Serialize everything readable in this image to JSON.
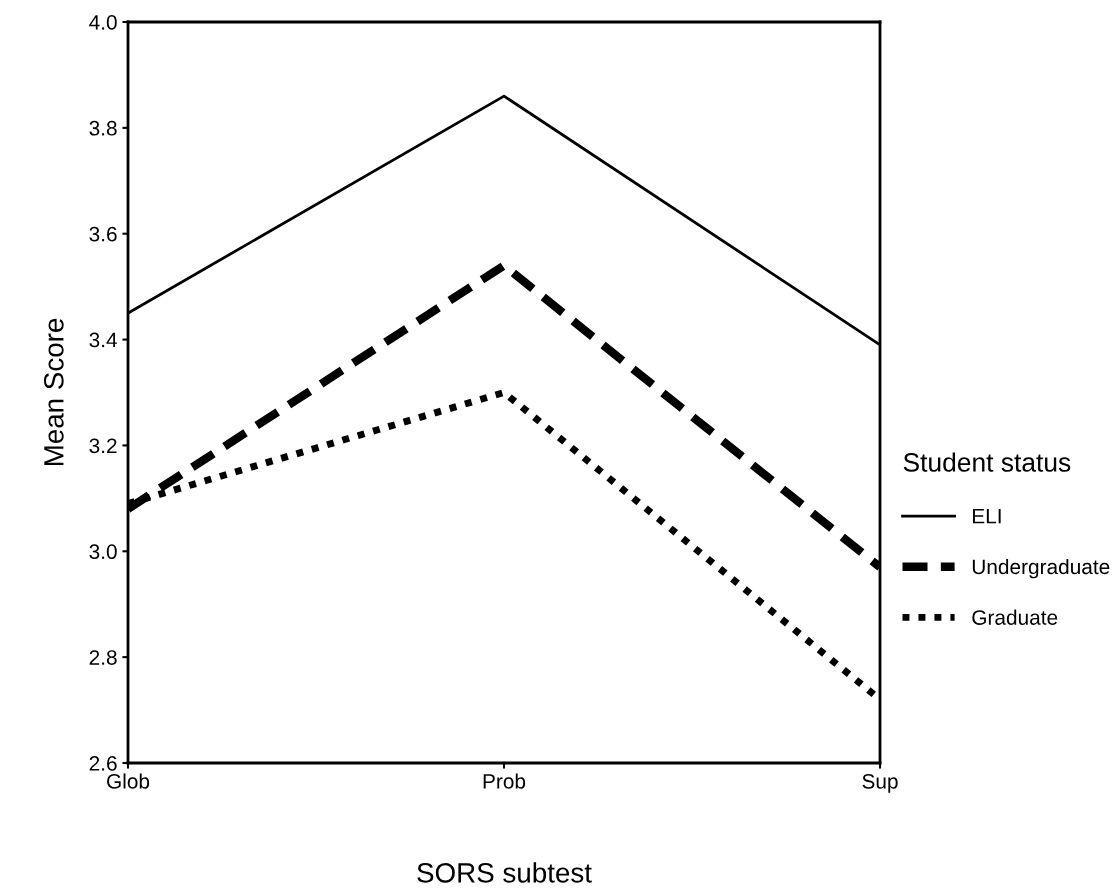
{
  "chart_data": {
    "type": "line",
    "xlabel": "SORS subtest",
    "ylabel": "Mean Score",
    "legend_title": "Student status",
    "categories": [
      "Glob",
      "Prob",
      "Sup"
    ],
    "series": [
      {
        "name": "ELI",
        "color": "#000000",
        "values": [
          3.45,
          3.86,
          3.39
        ],
        "line_style": "solid"
      },
      {
        "name": "Undergraduate",
        "color": "#000000",
        "values": [
          3.08,
          3.54,
          2.97
        ],
        "line_style": "dashed"
      },
      {
        "name": "Graduate",
        "color": "#000000",
        "values": [
          3.09,
          3.3,
          2.72
        ],
        "line_style": "dotted"
      }
    ],
    "ylim": [
      2.6,
      4.0
    ],
    "yticks": [
      {
        "value": 2.6,
        "label": "2.6"
      },
      {
        "value": 2.8,
        "label": "2.8"
      },
      {
        "value": 3.0,
        "label": "3.0"
      },
      {
        "value": 3.2,
        "label": "3.2"
      },
      {
        "value": 3.4,
        "label": "3.4"
      },
      {
        "value": 3.6,
        "label": "3.6"
      },
      {
        "value": 3.8,
        "label": "3.8"
      },
      {
        "value": 4.0,
        "label": "4.0"
      }
    ],
    "grid": false,
    "legend": "right",
    "marker": "none"
  }
}
